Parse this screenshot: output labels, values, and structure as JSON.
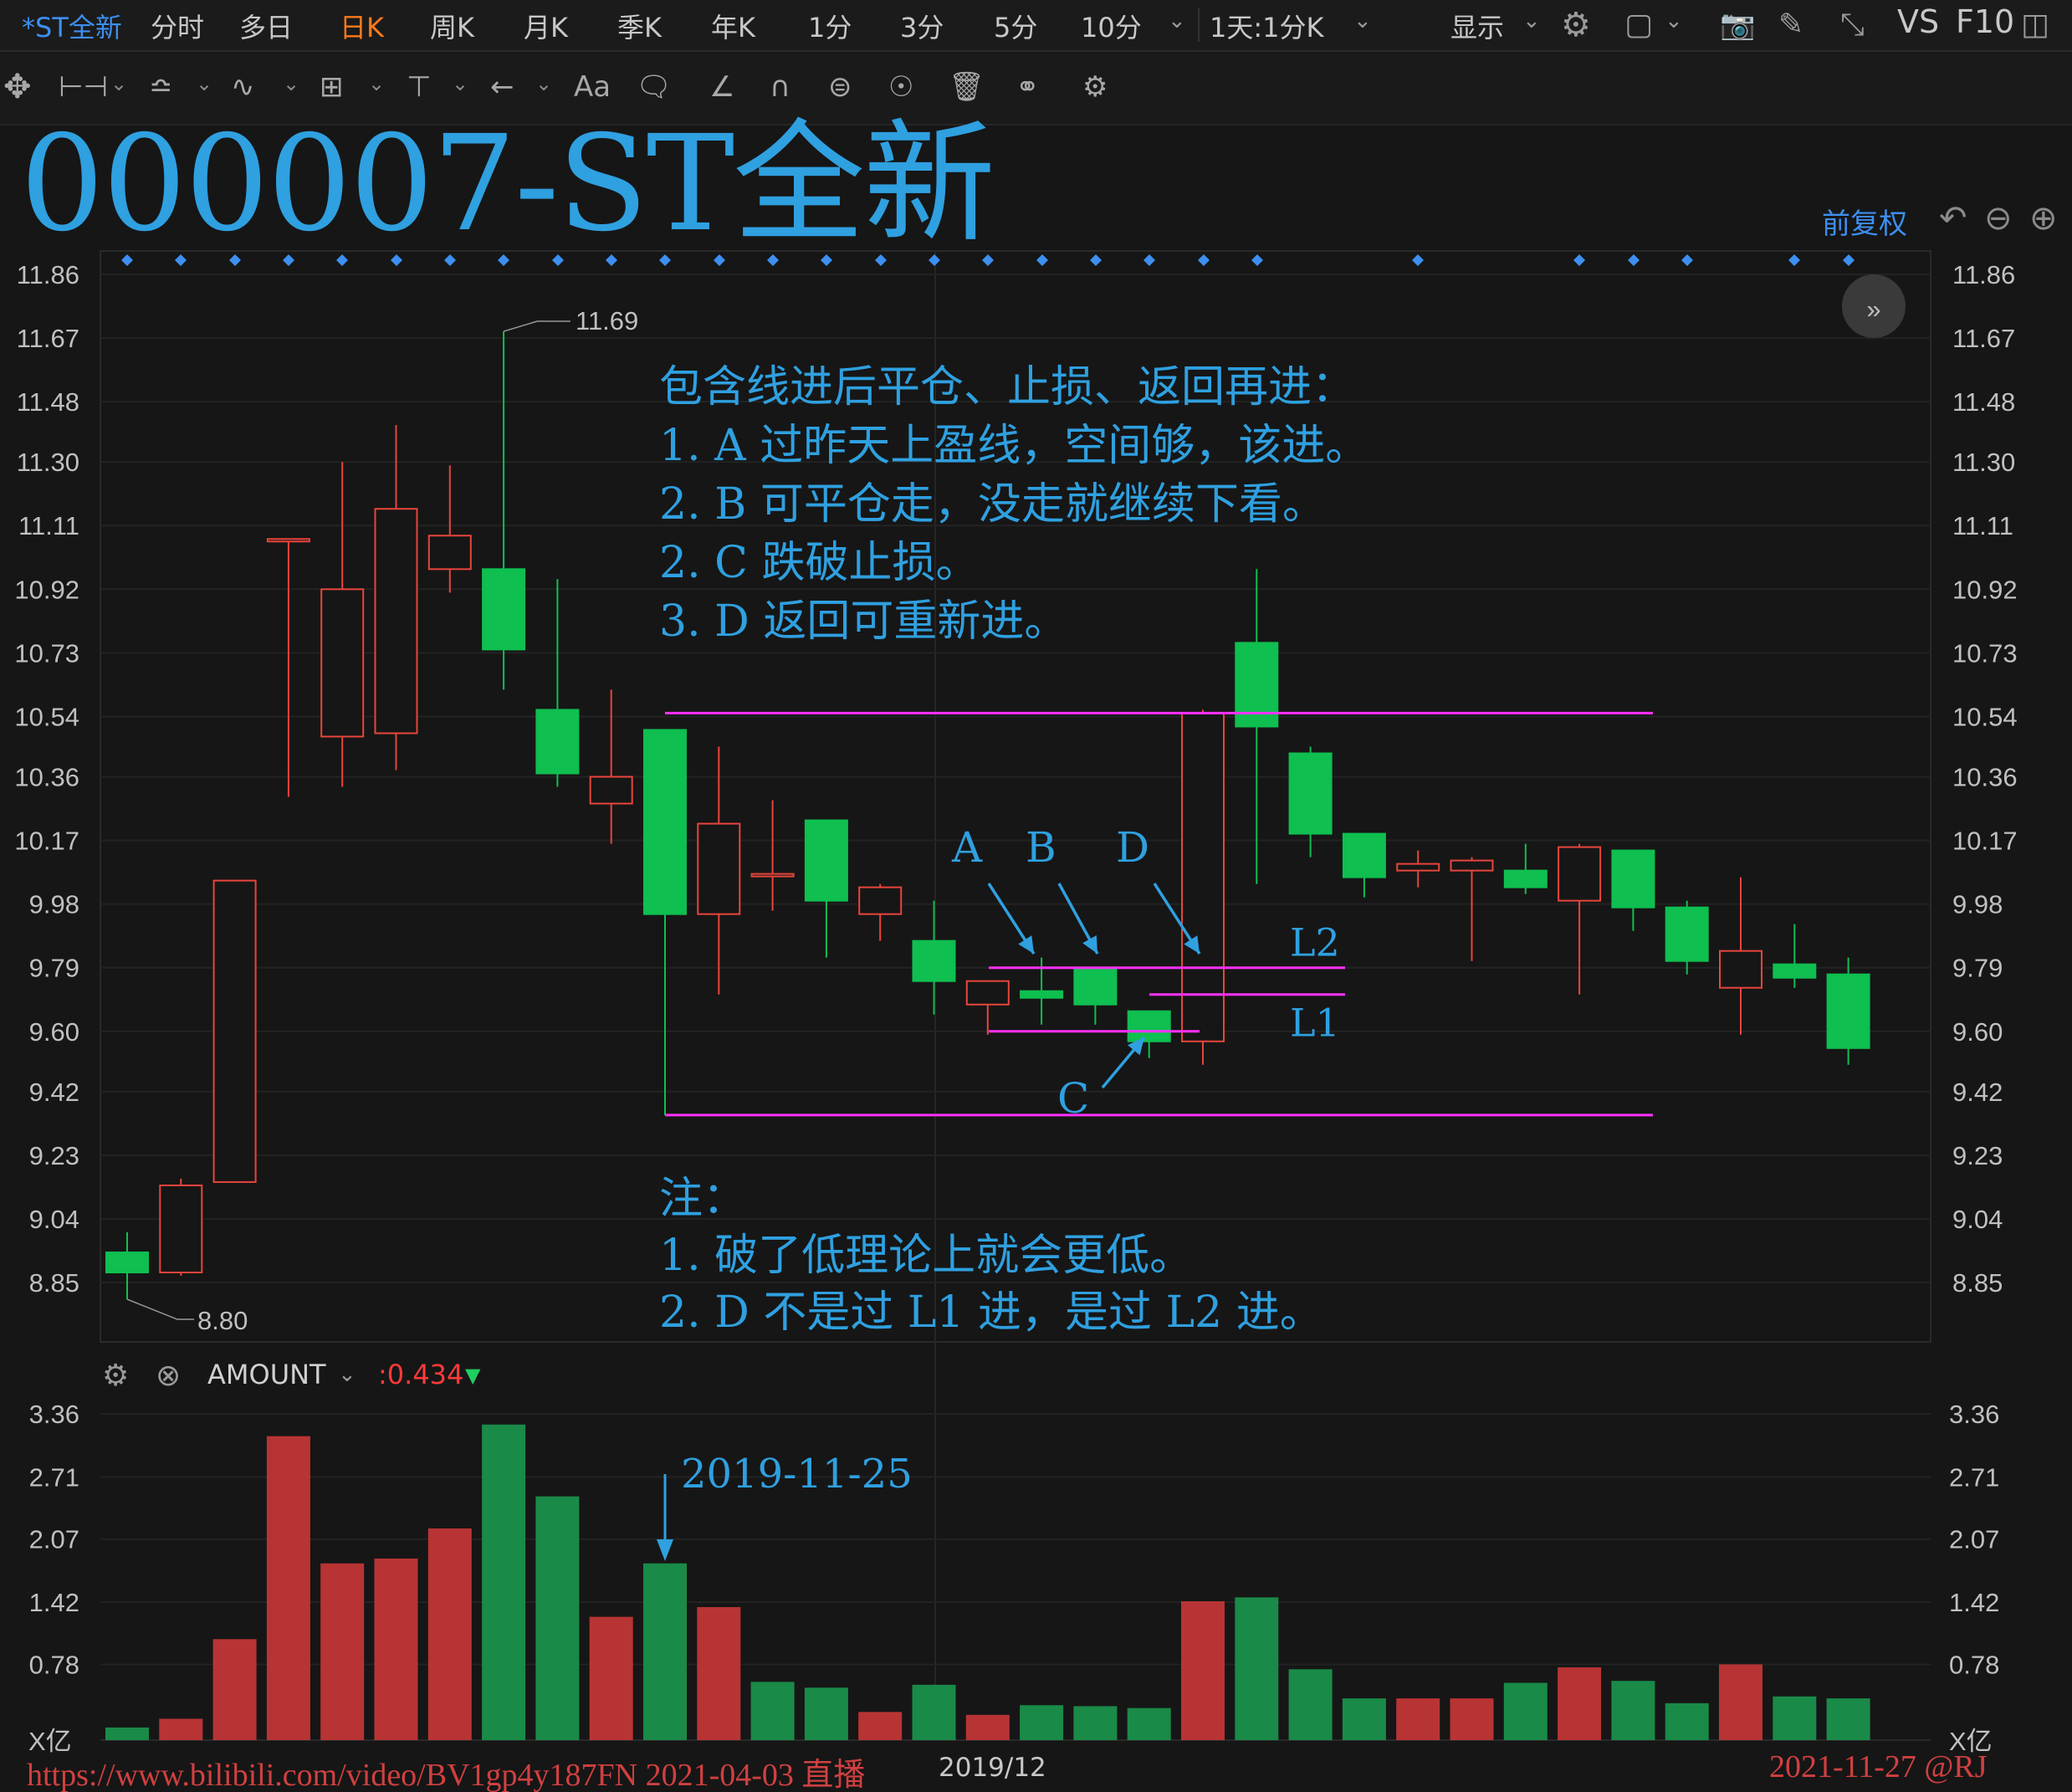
{
  "toolbar": {
    "stock_tab": "*ST全新",
    "periods": [
      "分时",
      "多日",
      "日K",
      "周K",
      "月K",
      "季K",
      "年K",
      "1分",
      "3分",
      "5分",
      "10分"
    ],
    "active_period": "日K",
    "range_label": "1天:1分K",
    "display_label": "显示",
    "vs_label": "VS",
    "f10_label": "F10"
  },
  "draw_toolbar": {
    "font_label": "Aa"
  },
  "header": {
    "title": "000007-ST全新",
    "adjust_label": "前复权"
  },
  "notes": {
    "main": [
      "包含线进后平仓、止损、返回再进：",
      "1. A 过昨天上盈线，空间够，该进。",
      "2. B 可平仓走，没走就继续下看。",
      "2. C 跌破止损。",
      "3. D 返回可重新进。"
    ],
    "remark": [
      "注：",
      "1. 破了低理论上就会更低。",
      "2. D 不是过 L1 进，是过 L2 进。"
    ],
    "volume_date": "2019-11-25"
  },
  "amount_bar": {
    "indicator": "AMOUNT",
    "value": ":0.434"
  },
  "footer": {
    "left_text": "https://www.bilibili.com/video/BV1gp4y187FN  2021-04-03 直播",
    "axis_month": "2019/12",
    "right_text": "2021-11-27 @RJ"
  },
  "colors": {
    "up": "#e8453c",
    "down": "#0fbf50",
    "vol_up": "#b83434",
    "vol_down": "#1a8a48",
    "annotation": "#2fa0e0",
    "level_line": "#ff30ff"
  },
  "chart_data": [
    {
      "type": "candlestick",
      "title": "000007-ST全新",
      "y_ticks": [
        "11.86",
        "11.67",
        "11.48",
        "11.30",
        "11.11",
        "10.92",
        "10.73",
        "10.54",
        "10.36",
        "10.17",
        "9.98",
        "9.79",
        "9.60",
        "9.42",
        "9.23",
        "9.04",
        "8.85"
      ],
      "ylim": [
        8.73,
        11.92
      ],
      "candles": [
        {
          "o": 8.94,
          "h": 9.0,
          "l": 8.8,
          "c": 8.88
        },
        {
          "o": 8.88,
          "h": 9.16,
          "l": 8.87,
          "c": 9.14
        },
        {
          "o": 9.15,
          "h": 10.05,
          "l": 9.15,
          "c": 10.05
        },
        {
          "o": 11.07,
          "h": 11.07,
          "l": 10.3,
          "c": 11.07
        },
        {
          "o": 10.48,
          "h": 11.3,
          "l": 10.33,
          "c": 10.92
        },
        {
          "o": 10.49,
          "h": 11.41,
          "l": 10.38,
          "c": 11.16
        },
        {
          "o": 10.98,
          "h": 11.29,
          "l": 10.91,
          "c": 11.08
        },
        {
          "o": 10.98,
          "h": 11.69,
          "l": 10.62,
          "c": 10.74
        },
        {
          "o": 10.56,
          "h": 10.95,
          "l": 10.33,
          "c": 10.37
        },
        {
          "o": 10.28,
          "h": 10.62,
          "l": 10.16,
          "c": 10.36
        },
        {
          "o": 10.5,
          "h": 10.5,
          "l": 9.35,
          "c": 9.95
        },
        {
          "o": 9.95,
          "h": 10.45,
          "l": 9.71,
          "c": 10.22
        },
        {
          "o": 10.07,
          "h": 10.29,
          "l": 9.96,
          "c": 10.07
        },
        {
          "o": 10.23,
          "h": 10.23,
          "l": 9.82,
          "c": 9.99
        },
        {
          "o": 9.95,
          "h": 10.04,
          "l": 9.87,
          "c": 10.03
        },
        {
          "o": 9.87,
          "h": 9.99,
          "l": 9.65,
          "c": 9.75
        },
        {
          "o": 9.68,
          "h": 9.75,
          "l": 9.59,
          "c": 9.75
        },
        {
          "o": 9.72,
          "h": 9.82,
          "l": 9.62,
          "c": 9.7
        },
        {
          "o": 9.79,
          "h": 9.79,
          "l": 9.62,
          "c": 9.68
        },
        {
          "o": 9.66,
          "h": 9.66,
          "l": 9.52,
          "c": 9.57
        },
        {
          "o": 9.57,
          "h": 10.56,
          "l": 9.5,
          "c": 10.55
        },
        {
          "o": 10.76,
          "h": 10.98,
          "l": 10.04,
          "c": 10.51
        },
        {
          "o": 10.43,
          "h": 10.45,
          "l": 10.12,
          "c": 10.19
        },
        {
          "o": 10.19,
          "h": 10.19,
          "l": 10.0,
          "c": 10.06
        },
        {
          "o": 10.08,
          "h": 10.14,
          "l": 10.03,
          "c": 10.1
        },
        {
          "o": 10.08,
          "h": 10.12,
          "l": 9.81,
          "c": 10.11
        },
        {
          "o": 10.08,
          "h": 10.16,
          "l": 10.01,
          "c": 10.03
        },
        {
          "o": 9.99,
          "h": 10.16,
          "l": 9.71,
          "c": 10.15
        },
        {
          "o": 10.14,
          "h": 10.14,
          "l": 9.9,
          "c": 9.97
        },
        {
          "o": 9.97,
          "h": 9.99,
          "l": 9.77,
          "c": 9.81
        },
        {
          "o": 9.73,
          "h": 10.06,
          "l": 9.59,
          "c": 9.84
        },
        {
          "o": 9.8,
          "h": 9.92,
          "l": 9.73,
          "c": 9.76
        },
        {
          "o": 9.77,
          "h": 9.82,
          "l": 9.5,
          "c": 9.55
        }
      ],
      "annotations": {
        "high_label": "11.69",
        "low_label": "8.80",
        "points": [
          {
            "label": "A",
            "candle": 17
          },
          {
            "label": "B",
            "candle": 18
          },
          {
            "label": "C",
            "candle": 19
          },
          {
            "label": "D",
            "candle": 20
          }
        ],
        "levels": [
          {
            "label": "L2",
            "value": 9.79
          },
          {
            "label": "L1",
            "value": 9.71
          },
          {
            "label": "",
            "value": 10.55
          },
          {
            "label": "",
            "value": 9.35
          },
          {
            "label": "",
            "value": 9.6
          }
        ]
      }
    },
    {
      "type": "bar",
      "title": "AMOUNT",
      "unit": "X亿",
      "y_ticks": [
        "3.36",
        "2.71",
        "2.07",
        "1.42",
        "0.78"
      ],
      "values": [
        0.13,
        0.22,
        1.04,
        3.13,
        1.82,
        1.87,
        2.18,
        3.25,
        2.51,
        1.27,
        1.82,
        1.37,
        0.6,
        0.54,
        0.29,
        0.57,
        0.26,
        0.36,
        0.35,
        0.33,
        1.43,
        1.47,
        0.73,
        0.43,
        0.43,
        0.43,
        0.59,
        0.75,
        0.61,
        0.38,
        0.78,
        0.45,
        0.43
      ],
      "directions": [
        "down",
        "up",
        "up",
        "up",
        "up",
        "up",
        "up",
        "down",
        "down",
        "up",
        "down",
        "up",
        "down",
        "down",
        "up",
        "down",
        "up",
        "down",
        "down",
        "down",
        "up",
        "down",
        "down",
        "down",
        "up",
        "up",
        "down",
        "up",
        "down",
        "down",
        "up",
        "down",
        "down"
      ]
    }
  ]
}
